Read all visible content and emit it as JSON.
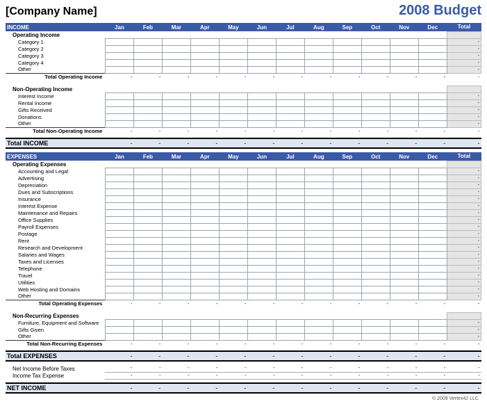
{
  "header": {
    "company": "[Company Name]",
    "title": "2008 Budget"
  },
  "months": [
    "Jan",
    "Feb",
    "Mar",
    "Apr",
    "May",
    "Jun",
    "Jul",
    "Aug",
    "Sep",
    "Oct",
    "Nov",
    "Dec"
  ],
  "total_label": "Total",
  "dash": "-",
  "colors": {
    "bar": "#3b5aa6",
    "band": "#dfe6f2",
    "title": "#3b5aa6"
  },
  "income": {
    "title": "INCOME",
    "operating": {
      "heading": "Operating Income",
      "rows": [
        "Category 1",
        "Category 2",
        "Category 3",
        "Category 4",
        "Other"
      ],
      "subtotal": "Total Operating Income"
    },
    "nonoperating": {
      "heading": "Non-Operating Income",
      "rows": [
        "Interest Income",
        "Rental Income",
        "Gifts Received",
        "Donations",
        "Other"
      ],
      "subtotal": "Total Non-Operating Income"
    },
    "total": "Total INCOME"
  },
  "expenses": {
    "title": "EXPENSES",
    "operating": {
      "heading": "Operating Expenses",
      "rows": [
        "Accounting and Legal",
        "Advertising",
        "Depreciation",
        "Dues and Subscriptions",
        "Insurance",
        "Interest Expense",
        "Maintenance and Repairs",
        "Office Supplies",
        "Payroll Expenses",
        "Postage",
        "Rent",
        "Research and Development",
        "Salaries and Wages",
        "Taxes and Licenses",
        "Telephone",
        "Travel",
        "Utilities",
        "Web Hosting and Domains",
        "Other"
      ],
      "subtotal": "Total Operating Expenses"
    },
    "nonrecurring": {
      "heading": "Non-Recurring Expenses",
      "rows": [
        "Furniture, Equipment and Software",
        "Gifts Given",
        "Other"
      ],
      "subtotal": "Total Non-Recurring Expenses"
    },
    "total": "Total EXPENSES"
  },
  "summary": {
    "before_tax": "Net Income Before Taxes",
    "tax_expense": "Income Tax Expense",
    "net": "NET INCOME"
  },
  "footer": "© 2009 Vertex42 LLC"
}
